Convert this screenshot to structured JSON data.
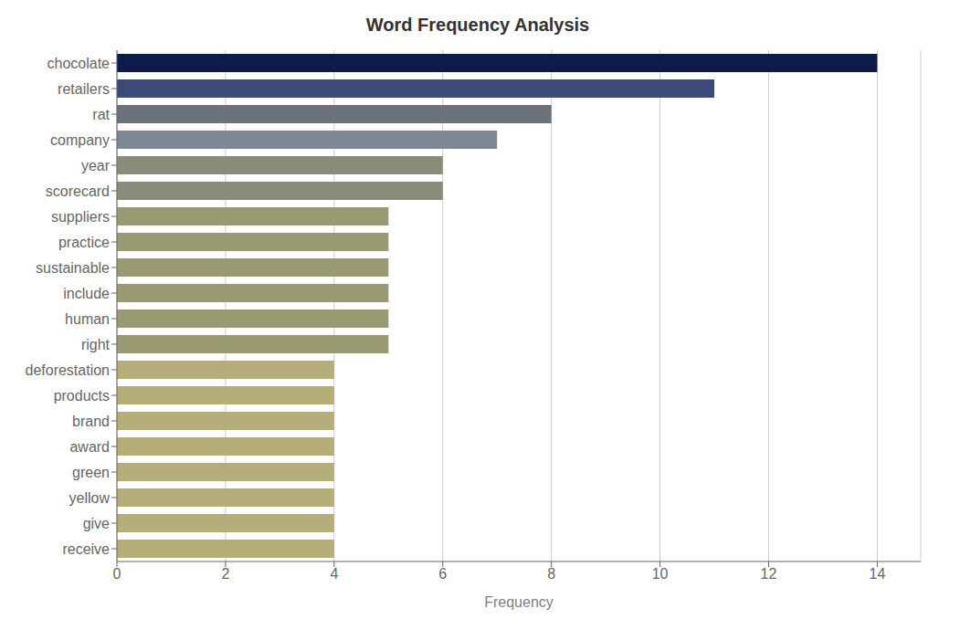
{
  "chart_data": {
    "type": "bar",
    "orientation": "horizontal",
    "title": "Word Frequency Analysis",
    "xlabel": "Frequency",
    "categories": [
      "chocolate",
      "retailers",
      "rat",
      "company",
      "year",
      "scorecard",
      "suppliers",
      "practice",
      "sustainable",
      "include",
      "human",
      "right",
      "deforestation",
      "products",
      "brand",
      "award",
      "green",
      "yellow",
      "give",
      "receive"
    ],
    "values": [
      14,
      11,
      8,
      7,
      6,
      6,
      5,
      5,
      5,
      5,
      5,
      5,
      4,
      4,
      4,
      4,
      4,
      4,
      4,
      4
    ],
    "colors": [
      "#0d1b4b",
      "#3a4b78",
      "#6b7278",
      "#7e8895",
      "#8a8c7a",
      "#8a8c7a",
      "#9a9a72",
      "#9a9a72",
      "#9a9a72",
      "#9a9a72",
      "#9a9a72",
      "#9a9a72",
      "#b5ae78",
      "#b5ae78",
      "#b5ae78",
      "#b5ae78",
      "#b5ae78",
      "#b5ae78",
      "#b5ae78",
      "#b5ae78"
    ],
    "xlim": [
      0,
      14.8
    ],
    "xticks": [
      0,
      2,
      4,
      6,
      8,
      10,
      12,
      14
    ],
    "grid": true
  }
}
